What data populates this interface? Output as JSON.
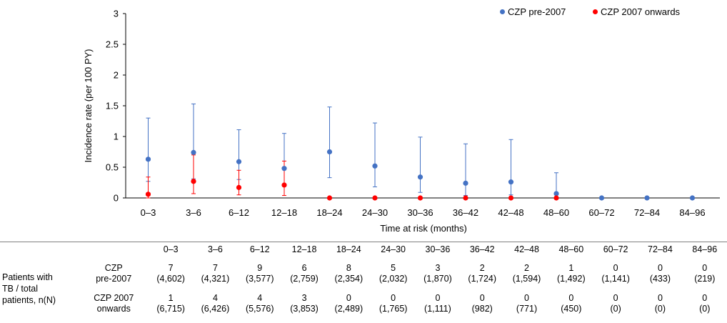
{
  "chart_data": {
    "type": "scatter",
    "ylabel": "Incidence rate (per 100 PY)",
    "xlabel": "Time at risk (months)",
    "ylim": [
      0,
      3
    ],
    "yticks": [
      "0",
      "0.5",
      "1",
      "1.5",
      "2",
      "2.5",
      "3"
    ],
    "categories": [
      "0–3",
      "3–6",
      "6–12",
      "12–18",
      "18–24",
      "24–30",
      "30–36",
      "36–42",
      "42–48",
      "48–60",
      "60–72",
      "72–84",
      "84–96"
    ],
    "legend_position": "top-right",
    "series": [
      {
        "name": "CZP pre-2007",
        "color": "#4472c4",
        "values": [
          0.63,
          0.74,
          0.59,
          0.48,
          0.75,
          0.52,
          0.34,
          0.24,
          0.26,
          0.07,
          0,
          0,
          0
        ],
        "ci_low": [
          0.27,
          0.31,
          0.3,
          0.19,
          0.33,
          0.18,
          0.09,
          0.04,
          0.05,
          0.01,
          0,
          0,
          0
        ],
        "ci_high": [
          1.3,
          1.53,
          1.11,
          1.05,
          1.48,
          1.22,
          0.99,
          0.88,
          0.95,
          0.41,
          0,
          0,
          0
        ]
      },
      {
        "name": "CZP 2007 onwards",
        "color": "#ff0000",
        "values": [
          0.06,
          0.27,
          0.17,
          0.21,
          0,
          0,
          0,
          0,
          0,
          0,
          null,
          null,
          null
        ],
        "ci_low": [
          0.0,
          0.07,
          0.05,
          0.04,
          0,
          0,
          0,
          0,
          0,
          0,
          null,
          null,
          null
        ],
        "ci_high": [
          0.34,
          0.7,
          0.45,
          0.6,
          0,
          0,
          0,
          0,
          0,
          0,
          null,
          null,
          null
        ]
      }
    ]
  },
  "table": {
    "group_label": "Patients with TB / total patients, n(N)",
    "group_label_lines": [
      "Patients with",
      "TB / total",
      "patients, n(N)"
    ],
    "header": [
      "0–3",
      "3–6",
      "6–12",
      "12–18",
      "18–24",
      "24–30",
      "30–36",
      "36–42",
      "42–48",
      "48–60",
      "60–72",
      "72–84",
      "84–96"
    ],
    "rows": [
      {
        "label_lines": [
          "CZP",
          "pre-2007"
        ],
        "n": [
          "7",
          "7",
          "9",
          "6",
          "8",
          "5",
          "3",
          "2",
          "2",
          "1",
          "0",
          "0",
          "0"
        ],
        "N": [
          "(4,602)",
          "(4,321)",
          "(3,577)",
          "(2,759)",
          "(2,354)",
          "(2,032)",
          "(1,870)",
          "(1,724)",
          "(1,594)",
          "(1,492)",
          "(1,141)",
          "(433)",
          "(219)"
        ]
      },
      {
        "label_lines": [
          "CZP 2007",
          "onwards"
        ],
        "n": [
          "1",
          "4",
          "4",
          "3",
          "0",
          "0",
          "0",
          "0",
          "0",
          "0",
          "0",
          "0",
          "0"
        ],
        "N": [
          "(6,715)",
          "(6,426)",
          "(5,576)",
          "(3,853)",
          "(2,489)",
          "(1,765)",
          "(1,111)",
          "(982)",
          "(771)",
          "(450)",
          "(0)",
          "(0)",
          "(0)"
        ]
      }
    ]
  }
}
